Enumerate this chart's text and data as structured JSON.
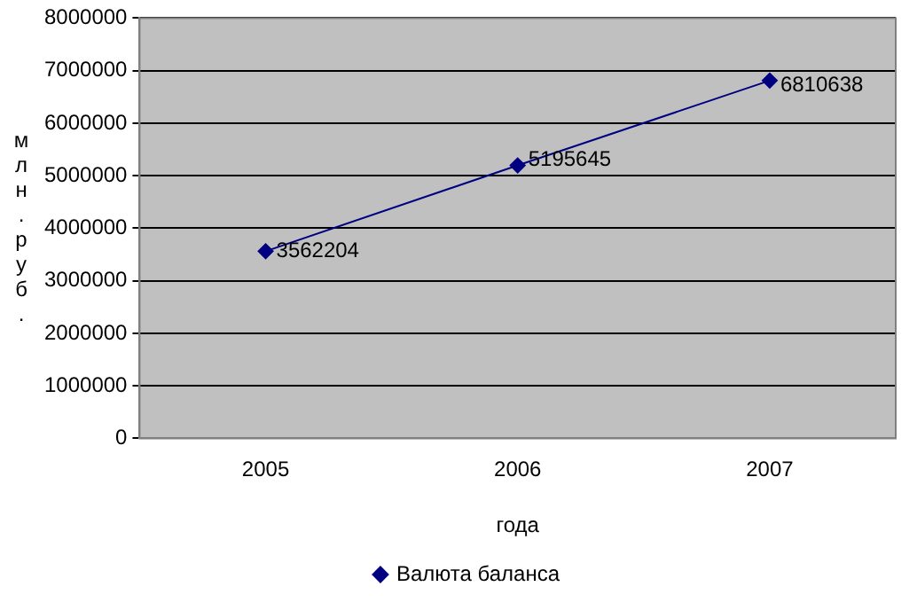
{
  "chart_data": {
    "type": "line",
    "xlabel": "года",
    "ylabel": "млн. руб.",
    "categories": [
      "2005",
      "2006",
      "2007"
    ],
    "series": [
      {
        "name": "Валюта баланса",
        "color": "#000080",
        "values": [
          3562204,
          5195645,
          6810638
        ]
      }
    ],
    "ylim": [
      0,
      8000000
    ],
    "yticks": [
      0,
      1000000,
      2000000,
      3000000,
      4000000,
      5000000,
      6000000,
      7000000,
      8000000
    ],
    "grid": "y",
    "legend": "bottom",
    "marker": "diamond",
    "line_style": "solid",
    "data_labels": true
  }
}
